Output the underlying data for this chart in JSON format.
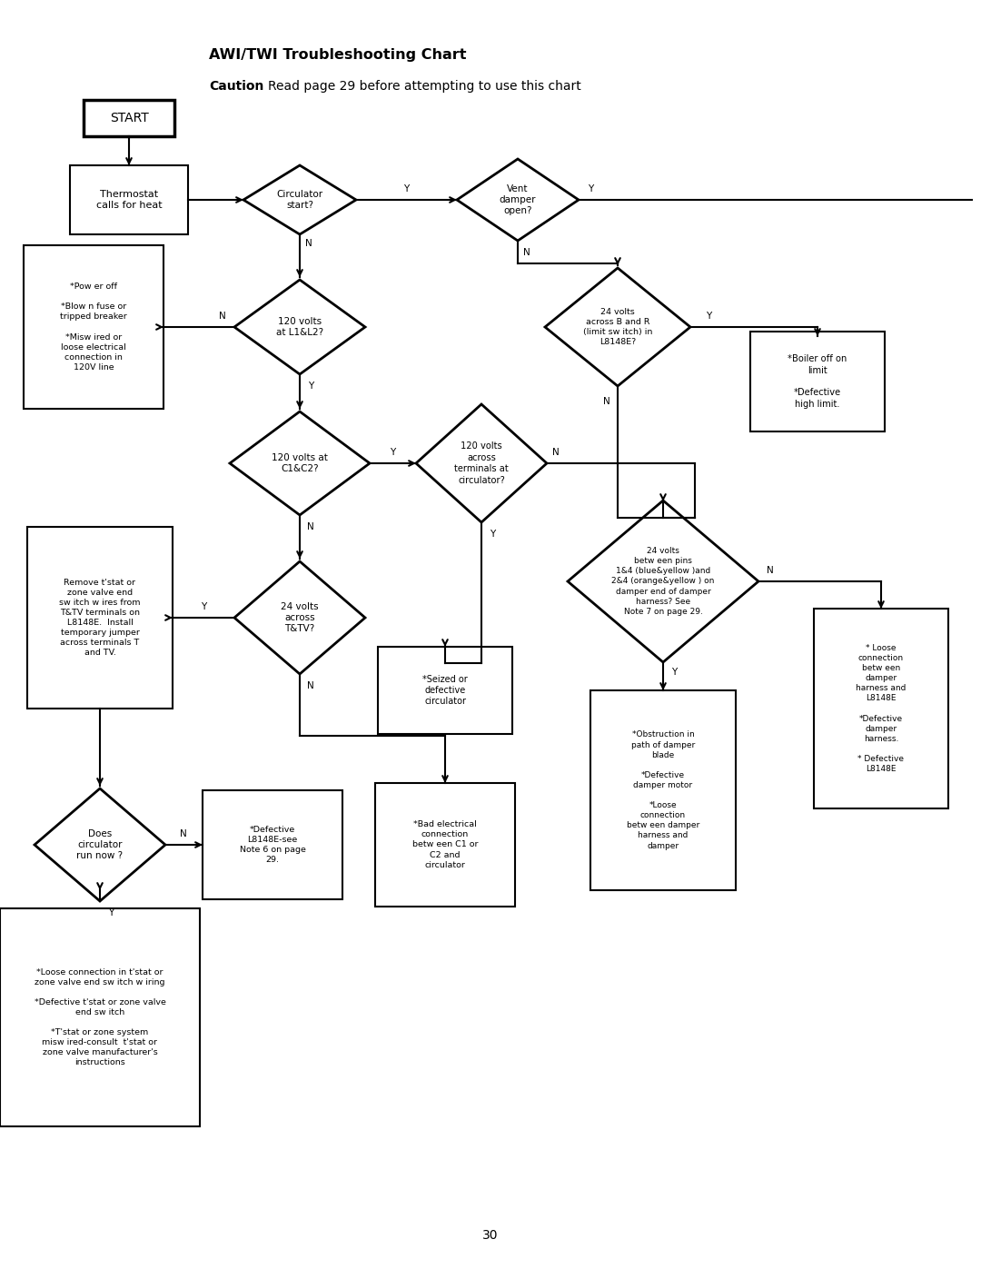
{
  "title": "AWI/TWI Troubleshooting Chart",
  "caution_bold": "Caution",
  "caution_rest": ": Read page 29 before attempting to use this chart",
  "page_number": "30",
  "bg_color": "#ffffff",
  "figsize": [
    10.8,
    13.97
  ],
  "dpi": 100
}
